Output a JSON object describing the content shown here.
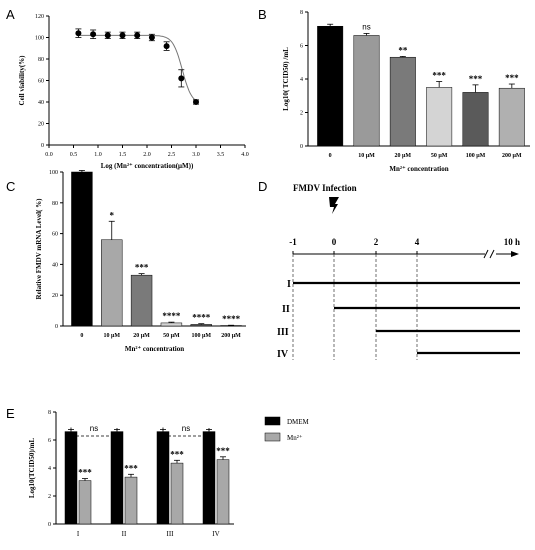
{
  "panels": {
    "A": "A",
    "B": "B",
    "C": "C",
    "D": "D",
    "E": "E"
  },
  "chart_data": [
    {
      "id": "A",
      "type": "line",
      "xlabel": "Log (Mn²⁺ concentration(μM))",
      "ylabel": "Cell viability(%)",
      "xlim": [
        0.0,
        4.0
      ],
      "ylim": [
        0,
        120
      ],
      "xticks": [
        "0.0",
        "0.5",
        "1.0",
        "1.5",
        "2.0",
        "2.5",
        "3.0",
        "3.5",
        "4.0"
      ],
      "yticks": [
        "0",
        "20",
        "40",
        "60",
        "80",
        "100",
        "120"
      ],
      "x": [
        0.6,
        0.9,
        1.2,
        1.5,
        1.8,
        2.1,
        2.4,
        2.7,
        3.0
      ],
      "y": [
        104,
        103,
        102,
        102,
        102,
        100,
        92,
        62,
        40
      ],
      "err": [
        4,
        4,
        3,
        3,
        3,
        3,
        4,
        8,
        2
      ],
      "fit": "sigmoid"
    },
    {
      "id": "B",
      "type": "bar",
      "xlabel": "Mn²⁺ concentration",
      "ylabel": "Log10( TCID50) /mL",
      "categories": [
        "0",
        "10 μM",
        "20 μM",
        "50 μM",
        "100 μM",
        "200 μM"
      ],
      "values": [
        7.15,
        6.6,
        5.3,
        3.5,
        3.2,
        3.45
      ],
      "err": [
        0.12,
        0.12,
        0.05,
        0.35,
        0.45,
        0.25
      ],
      "significance": [
        "",
        "ns",
        "**",
        "***",
        "***",
        "***"
      ],
      "colors": [
        "#000000",
        "#9a9a9a",
        "#7a7a7a",
        "#d4d4d4",
        "#5a5a5a",
        "#b0b0b0"
      ],
      "ylim": [
        0,
        8
      ],
      "yticks": [
        "0",
        "2",
        "4",
        "6",
        "8"
      ]
    },
    {
      "id": "C",
      "type": "bar",
      "xlabel": "Mn²⁺ concentration",
      "ylabel": "Relative FMDV mRNA Level( %)",
      "categories": [
        "0",
        "10 μM",
        "20 μM",
        "50 μM",
        "100 μM",
        "200 μM"
      ],
      "values": [
        100,
        56,
        33,
        2,
        1,
        0.3
      ],
      "err": [
        1,
        12,
        1,
        0.5,
        0.5,
        0.2
      ],
      "significance": [
        "",
        "*",
        "***",
        "****",
        "****",
        "****"
      ],
      "colors": [
        "#000000",
        "#a8a8a8",
        "#7a7a7a",
        "#d4d4d4",
        "#5a5a5a",
        "#b0b0b0"
      ],
      "ylim": [
        0,
        100
      ],
      "yticks": [
        "0",
        "20",
        "40",
        "60",
        "80",
        "100"
      ]
    },
    {
      "id": "E",
      "type": "bar",
      "ylabel": "Log10(TCID50)/mL",
      "categories": [
        "I",
        "II",
        "III",
        "IV"
      ],
      "series": [
        {
          "name": "DMEM",
          "color": "#000000",
          "values": [
            6.6,
            6.6,
            6.6,
            6.6
          ],
          "err": [
            0.15,
            0.15,
            0.15,
            0.15
          ]
        },
        {
          "name": "Mn²⁺",
          "color": "#a8a8a8",
          "values": [
            3.1,
            3.35,
            4.35,
            4.6
          ],
          "err": [
            0.15,
            0.2,
            0.2,
            0.2
          ]
        }
      ],
      "significance": [
        "***",
        "***",
        "***",
        "***"
      ],
      "comparisons": [
        {
          "pair": [
            "I",
            "II"
          ],
          "label": "ns"
        },
        {
          "pair": [
            "III",
            "IV"
          ],
          "label": "ns"
        }
      ],
      "ylim": [
        0,
        8
      ],
      "yticks": [
        "0",
        "2",
        "4",
        "6",
        "8"
      ]
    }
  ],
  "timeline": {
    "title": "FMDV Infection",
    "tick_labels": [
      "-1",
      "0",
      "2",
      "4",
      "10 h"
    ],
    "ticks": [
      -1,
      0,
      2,
      4,
      10
    ],
    "groups": [
      {
        "label": "I",
        "start": -1
      },
      {
        "label": "II",
        "start": 0
      },
      {
        "label": "III",
        "start": 2
      },
      {
        "label": "IV",
        "start": 4
      }
    ]
  }
}
